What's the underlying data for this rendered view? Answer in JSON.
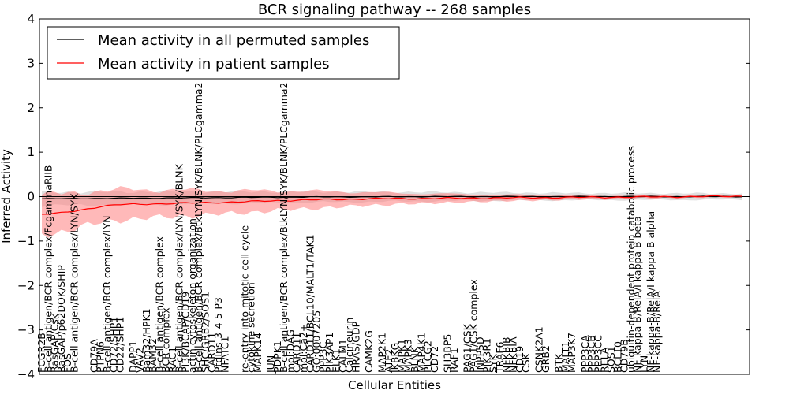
{
  "chart_data": {
    "type": "line",
    "title": "BCR signaling pathway -- 268 samples",
    "xlabel": "Cellular Entities",
    "ylabel": "Inferred Activity",
    "ylim": [
      -4,
      4
    ],
    "yticks": [
      -4,
      -3,
      -2,
      -1,
      0,
      1,
      2,
      3,
      4
    ],
    "n_points": 108,
    "legend": {
      "position": "top-left"
    },
    "series": [
      {
        "name": "Mean activity in all permuted samples",
        "color": "#000000",
        "band_color": "#bbbbbb",
        "anchors": [
          [
            0,
            -0.05
          ],
          [
            10,
            -0.04
          ],
          [
            20,
            -0.03
          ],
          [
            30,
            -0.02
          ],
          [
            40,
            -0.01
          ],
          [
            60,
            0.0
          ],
          [
            80,
            0.0
          ],
          [
            107,
            0.0
          ]
        ],
        "band_anchors": [
          [
            0,
            0.15
          ],
          [
            20,
            0.14
          ],
          [
            40,
            0.12
          ],
          [
            60,
            0.1
          ],
          [
            80,
            0.08
          ],
          [
            107,
            0.07
          ]
        ]
      },
      {
        "name": "Mean activity in patient samples",
        "color": "#ff0000",
        "band_color": "#ff8080",
        "anchors": [
          [
            0,
            -0.4
          ],
          [
            3,
            -0.37
          ],
          [
            6,
            -0.3
          ],
          [
            9,
            -0.22
          ],
          [
            12,
            -0.18
          ],
          [
            18,
            -0.16
          ],
          [
            24,
            -0.14
          ],
          [
            30,
            -0.12
          ],
          [
            36,
            -0.09
          ],
          [
            42,
            -0.07
          ],
          [
            50,
            -0.05
          ],
          [
            60,
            -0.04
          ],
          [
            70,
            -0.03
          ],
          [
            80,
            -0.02
          ],
          [
            90,
            -0.01
          ],
          [
            100,
            0.0
          ],
          [
            107,
            0.01
          ]
        ],
        "band_anchors": [
          [
            0,
            0.45
          ],
          [
            5,
            0.4
          ],
          [
            10,
            0.35
          ],
          [
            20,
            0.3
          ],
          [
            30,
            0.25
          ],
          [
            40,
            0.2
          ],
          [
            55,
            0.12
          ],
          [
            70,
            0.07
          ],
          [
            85,
            0.04
          ],
          [
            95,
            0.03
          ],
          [
            107,
            0.02
          ]
        ]
      }
    ],
    "entities": [
      {
        "label": "FCGR2B",
        "i": 0
      },
      {
        "label": "B-cell antigen/BCR complex/FcgammaRIIB",
        "i": 1
      },
      {
        "label": "RasGAP/Csk",
        "i": 2
      },
      {
        "label": "RasGAP/p62DOK/SHIP",
        "i": 3
      },
      {
        "label": "FOS",
        "i": 4
      },
      {
        "label": "B-cell antigen/BCR complex/LYN/SYK",
        "i": 5
      },
      {
        "label": "CD79A",
        "i": 8
      },
      {
        "label": "PTPN6",
        "i": 9
      },
      {
        "label": "B-cell antigen/BCR complex/LYN",
        "i": 10
      },
      {
        "label": "CD72/SHP1",
        "i": 11
      },
      {
        "label": "CD22/SHP1",
        "i": 12
      },
      {
        "label": "DAPP1",
        "i": 14
      },
      {
        "label": "VAV2",
        "i": 15
      },
      {
        "label": "Bam32/HPK1",
        "i": 16
      },
      {
        "label": "BAM32",
        "i": 17
      },
      {
        "label": "B-cell antigen/BCR complex",
        "i": 18
      },
      {
        "label": "BCR complex",
        "i": 19
      },
      {
        "label": "RAC1",
        "i": 20
      },
      {
        "label": "B-cell antigen/BCR complex/LYN/SYK/BLNK",
        "i": 21
      },
      {
        "label": "PI3K/BCAP/CD19",
        "i": 22
      },
      {
        "label": "actin cytoskeleton organization",
        "i": 23
      },
      {
        "label": "B-cell antigen/BCR complex/BtkLYN/SYK/BLNK/PLCgamma2",
        "i": 24
      },
      {
        "label": "SHC/GRB2/SOS1",
        "i": 25
      },
      {
        "label": "CARD11",
        "i": 26
      },
      {
        "label": "PtdIns-3-4-5-P3",
        "i": 27
      },
      {
        "label": "NFATC1",
        "i": 28
      },
      {
        "label": "re-entry into mitotic cell cycle",
        "i": 31
      },
      {
        "label": "cytokine secretion",
        "i": 32
      },
      {
        "label": "MAPK14",
        "i": 33
      },
      {
        "label": "JUN",
        "i": 35
      },
      {
        "label": "PDPK1",
        "i": 36
      },
      {
        "label": "B-cell antigen/BCR complex/BtkLYN/SYK/BLNK/PLCgamma2",
        "i": 37
      },
      {
        "label": "mol:DAG",
        "i": 38
      },
      {
        "label": "CARD11",
        "i": 39
      },
      {
        "label": "mol:Ca2+",
        "i": 40
      },
      {
        "label": "CARD11/BCL10/MALT1/TAK1",
        "i": 41
      },
      {
        "label": "GO:0007205",
        "i": 42
      },
      {
        "label": "PPP3C",
        "i": 43
      },
      {
        "label": "PIK3AP1",
        "i": 44
      },
      {
        "label": "ELK1",
        "i": 45
      },
      {
        "label": "CALM1",
        "i": 46
      },
      {
        "label": "Calcineurin",
        "i": 47
      },
      {
        "label": "HRAS/GDP",
        "i": 48
      },
      {
        "label": "CAMK2G",
        "i": 50
      },
      {
        "label": "MAP2K1",
        "i": 52
      },
      {
        "label": "ATF2",
        "i": 53
      },
      {
        "label": "IKBKG",
        "i": 54
      },
      {
        "label": "MAPK1",
        "i": 55
      },
      {
        "label": "MAPK3",
        "i": 56
      },
      {
        "label": "BLNK",
        "i": 57
      },
      {
        "label": "MAP4K1",
        "i": 58
      },
      {
        "label": "PLCG2",
        "i": 59
      },
      {
        "label": "CD72",
        "i": 60
      },
      {
        "label": "SH3BP5",
        "i": 62
      },
      {
        "label": "RAF1",
        "i": 63
      },
      {
        "label": "PAG1/CSK",
        "i": 65
      },
      {
        "label": "PAG1/CSK complex",
        "i": 66
      },
      {
        "label": "INPP5D",
        "i": 67
      },
      {
        "label": "PIK3R1",
        "i": 68
      },
      {
        "label": "SYK",
        "i": 69
      },
      {
        "label": "TRAF6",
        "i": 70
      },
      {
        "label": "NFKBIB",
        "i": 71
      },
      {
        "label": "NFKBIA",
        "i": 72
      },
      {
        "label": "CD19",
        "i": 73
      },
      {
        "label": "CSK",
        "i": 74
      },
      {
        "label": "CSNK2A1",
        "i": 76
      },
      {
        "label": "GRB2",
        "i": 77
      },
      {
        "label": "BTK",
        "i": 79
      },
      {
        "label": "MALT1",
        "i": 80
      },
      {
        "label": "MAP3K7",
        "i": 81
      },
      {
        "label": "PPP3CA",
        "i": 83
      },
      {
        "label": "PPP3CB",
        "i": 84
      },
      {
        "label": "PPP3CC",
        "i": 85
      },
      {
        "label": "RELA",
        "i": 86
      },
      {
        "label": "SOS1",
        "i": 87
      },
      {
        "label": "BCL10",
        "i": 88
      },
      {
        "label": "CD79B",
        "i": 89
      },
      {
        "label": "ubiquitin-dependent protein catabolic process",
        "i": 90
      },
      {
        "label": "NF-kappa-B/RelA/I kappa B beta",
        "i": 91
      },
      {
        "label": "LYN",
        "i": 92
      },
      {
        "label": "NF-kappa-B/RelA/I kappa B alpha",
        "i": 93
      },
      {
        "label": "NF-kappa-B/RelA",
        "i": 94
      }
    ]
  },
  "colors": {
    "background": "#ffffff",
    "axis": "#000000",
    "zero_line": "#000000"
  }
}
